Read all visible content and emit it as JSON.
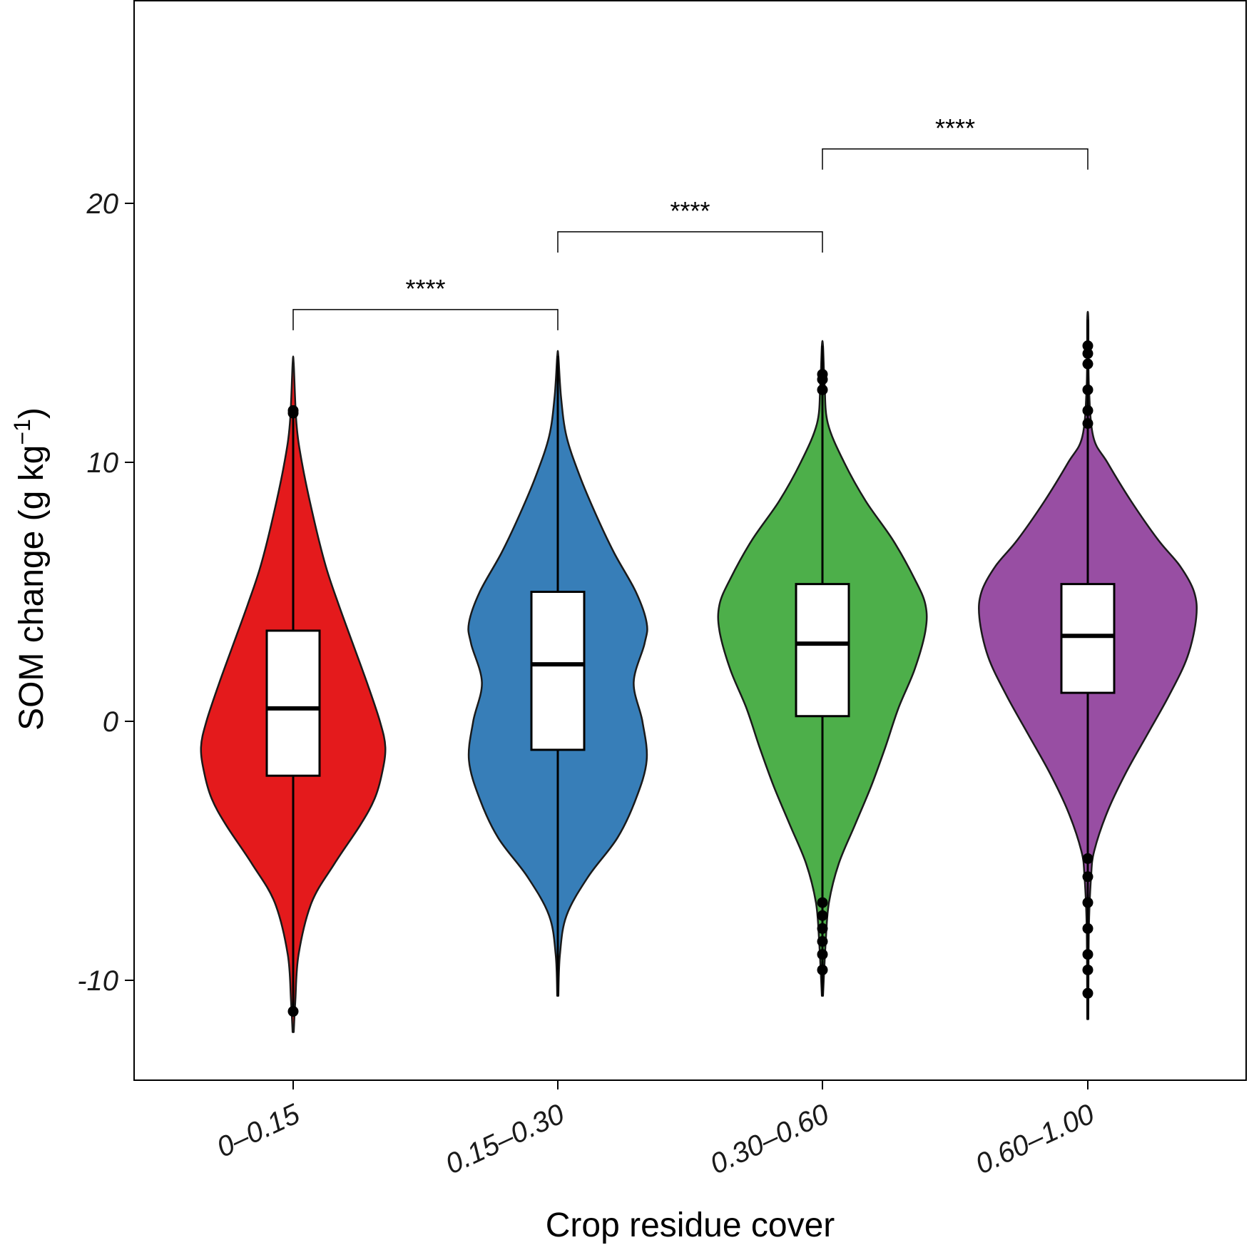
{
  "chart_data": {
    "type": "violin",
    "title": "",
    "xlabel": "Crop residue cover",
    "ylabel": {
      "main": "SOM change  (g kg",
      "superscript": "−1",
      "close": ")"
    },
    "ylim": [
      -13.4,
      27.7
    ],
    "yticks": [
      -10,
      0,
      10,
      20
    ],
    "ytick_labels": [
      "-10",
      "0",
      "10",
      "20"
    ],
    "grid": false,
    "categories": [
      "0–0.15",
      "0.15–0.30",
      "0.30–0.60",
      "0.60–1.00"
    ],
    "series": [
      {
        "name": "0–0.15",
        "color": "#e41a1c",
        "box": {
          "q1": -2.1,
          "median": 0.5,
          "q3": 3.5,
          "whisker_low": -11.2,
          "whisker_high": 12.0
        },
        "outliers": [
          12.0,
          11.9,
          -11.2
        ],
        "violin": {
          "y": [
            -12.0,
            -10.8,
            -9.0,
            -7.0,
            -5.5,
            -4.0,
            -3.0,
            -2.0,
            -1.0,
            0.0,
            1.5,
            3.0,
            4.5,
            6.0,
            8.0,
            10.0,
            11.5,
            13.8
          ],
          "halfwidth": [
            0.005,
            0.02,
            0.05,
            0.17,
            0.38,
            0.62,
            0.75,
            0.82,
            0.85,
            0.8,
            0.68,
            0.55,
            0.42,
            0.3,
            0.18,
            0.08,
            0.03,
            0.005
          ]
        }
      },
      {
        "name": "0.15–0.30",
        "color": "#377eb8",
        "box": {
          "q1": -1.1,
          "median": 2.2,
          "q3": 5.0,
          "whisker_low": -10.6,
          "whisker_high": 14.1
        },
        "outliers": [],
        "violin": {
          "y": [
            -10.6,
            -9.0,
            -7.5,
            -6.0,
            -4.5,
            -3.0,
            -1.5,
            0.0,
            1.5,
            3.0,
            3.8,
            5.0,
            6.5,
            8.0,
            9.5,
            11.0,
            12.5,
            14.1
          ],
          "halfwidth": [
            0.005,
            0.02,
            0.08,
            0.28,
            0.55,
            0.72,
            0.82,
            0.78,
            0.7,
            0.8,
            0.82,
            0.72,
            0.52,
            0.35,
            0.2,
            0.08,
            0.03,
            0.005
          ]
        }
      },
      {
        "name": "0.30–0.60",
        "color": "#4daf4a",
        "box": {
          "q1": 0.2,
          "median": 3.0,
          "q3": 5.3,
          "whisker_low": -10.6,
          "whisker_high": 14.5
        },
        "outliers": [
          13.4,
          13.2,
          12.8,
          -7.0,
          -7.5,
          -8.0,
          -8.5,
          -9.0,
          -9.6
        ],
        "violin": {
          "y": [
            -10.6,
            -8.5,
            -7.0,
            -5.5,
            -4.0,
            -2.5,
            -1.0,
            0.5,
            2.0,
            3.5,
            4.5,
            5.5,
            7.0,
            8.5,
            10.0,
            11.5,
            13.0,
            14.5
          ],
          "halfwidth": [
            0.005,
            0.03,
            0.06,
            0.15,
            0.3,
            0.45,
            0.58,
            0.7,
            0.85,
            0.95,
            0.95,
            0.85,
            0.65,
            0.4,
            0.2,
            0.05,
            0.02,
            0.005
          ]
        }
      },
      {
        "name": "0.60–1.00",
        "color": "#984ea3",
        "box": {
          "q1": 1.1,
          "median": 3.3,
          "q3": 5.3,
          "whisker_low": -11.5,
          "whisker_high": 15.5
        },
        "outliers": [
          14.5,
          14.2,
          13.8,
          12.8,
          12.0,
          11.5,
          -5.3,
          -6.0,
          -7.0,
          -8.0,
          -9.0,
          -9.6,
          -10.5
        ],
        "violin": {
          "y": [
            -11.5,
            -8.0,
            -6.0,
            -5.0,
            -3.5,
            -2.0,
            -0.5,
            1.0,
            2.5,
            4.0,
            5.0,
            6.0,
            7.0,
            8.5,
            10.0,
            11.0,
            13.0,
            15.5
          ],
          "halfwidth": [
            0.005,
            0.01,
            0.03,
            0.06,
            0.18,
            0.35,
            0.55,
            0.75,
            0.92,
            1.0,
            0.98,
            0.85,
            0.65,
            0.4,
            0.18,
            0.05,
            0.01,
            0.005
          ]
        }
      }
    ],
    "significance": [
      {
        "from": 0,
        "to": 1,
        "label": "****",
        "y": 15.9,
        "drop": 0.8
      },
      {
        "from": 1,
        "to": 2,
        "label": "****",
        "y": 18.9,
        "drop": 0.8
      },
      {
        "from": 2,
        "to": 3,
        "label": "****",
        "y": 22.1,
        "drop": 0.8
      }
    ]
  }
}
